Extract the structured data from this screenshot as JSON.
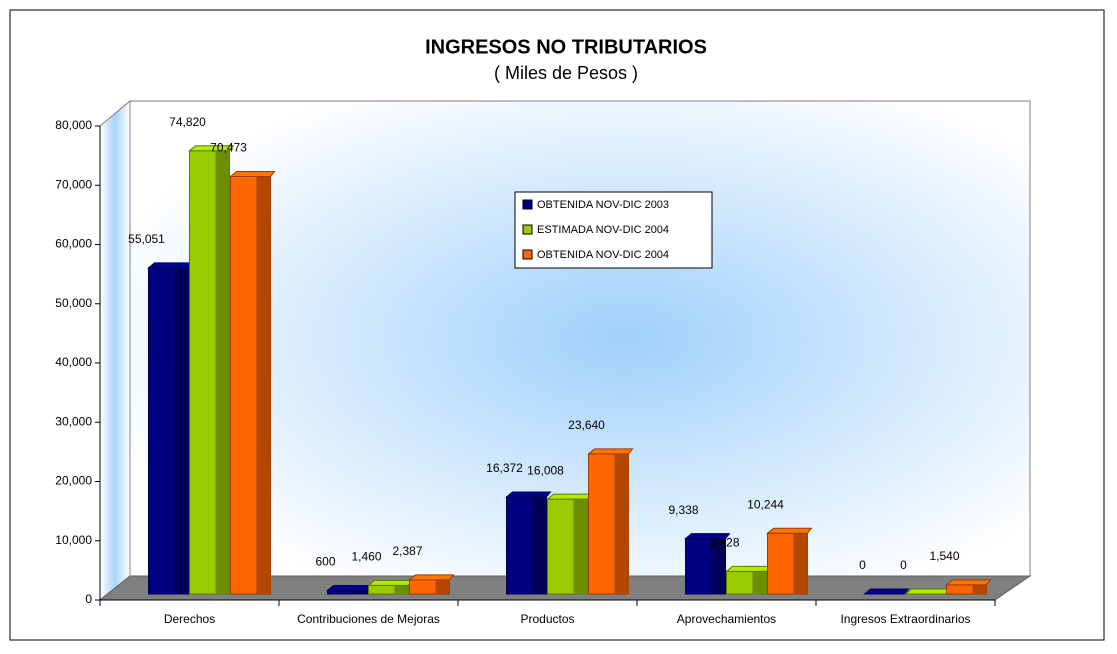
{
  "chart_data": {
    "type": "bar3d",
    "title": "INGRESOS NO TRIBUTARIOS",
    "subtitle": "( Miles de Pesos )",
    "categories": [
      "Derechos",
      "Contribuciones de Mejoras",
      "Productos",
      "Aprovechamientos",
      "Ingresos Extraordinarios"
    ],
    "series": [
      {
        "name": "OBTENIDA NOV-DIC 2003",
        "color": "#000080",
        "values": [
          55051,
          600,
          16372,
          9338,
          0
        ],
        "value_labels": [
          "55,051",
          "600",
          "16,372",
          "9,338",
          "0"
        ]
      },
      {
        "name": "ESTIMADA NOV-DIC 2004",
        "color": "#99cc00",
        "values": [
          74820,
          1460,
          16008,
          3828,
          0
        ],
        "value_labels": [
          "74,820",
          "1,460",
          "16,008",
          "3,828",
          "0"
        ]
      },
      {
        "name": "OBTENIDA NOV-DIC 2004",
        "color": "#ff6600",
        "values": [
          70473,
          2387,
          23640,
          10244,
          1540
        ],
        "value_labels": [
          "70,473",
          "2,387",
          "23,640",
          "10,244",
          "1,540"
        ]
      }
    ],
    "ylim": [
      0,
      80000
    ],
    "yticks": [
      0,
      {
        "value": 10000,
        "label": "10,000"
      },
      {
        "value": 20000,
        "label": "20,000"
      },
      {
        "value": 30000,
        "label": "30,000"
      },
      {
        "value": 40000,
        "label": "40,000"
      },
      {
        "value": 50000,
        "label": "50,000"
      },
      {
        "value": 60000,
        "label": "60,000"
      },
      {
        "value": 70000,
        "label": "70,000"
      },
      {
        "value": 80000,
        "label": "80,000"
      }
    ],
    "legend": "upper-center"
  }
}
